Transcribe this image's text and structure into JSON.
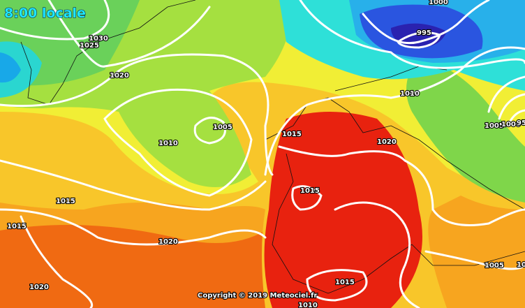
{
  "header": {
    "time": "8:00 locale"
  },
  "isobars": [
    {
      "label": "1030"
    },
    {
      "label": "1025"
    },
    {
      "label": "1020"
    },
    {
      "label": "1010"
    },
    {
      "label": "1005"
    },
    {
      "label": "1015"
    },
    {
      "label": "1020"
    },
    {
      "label": "1015"
    },
    {
      "label": "1015"
    },
    {
      "label": "1015"
    },
    {
      "label": "1020"
    },
    {
      "label": "1020"
    },
    {
      "label": "1015"
    },
    {
      "label": "1010"
    },
    {
      "label": "1010"
    },
    {
      "label": "1000"
    },
    {
      "label": "995"
    },
    {
      "label": "1005"
    },
    {
      "label": "1000"
    },
    {
      "label": "95"
    },
    {
      "label": "1005"
    },
    {
      "label": "10"
    }
  ],
  "footer": {
    "copyright": "Copyright © 2019 Meteociel.fr"
  }
}
